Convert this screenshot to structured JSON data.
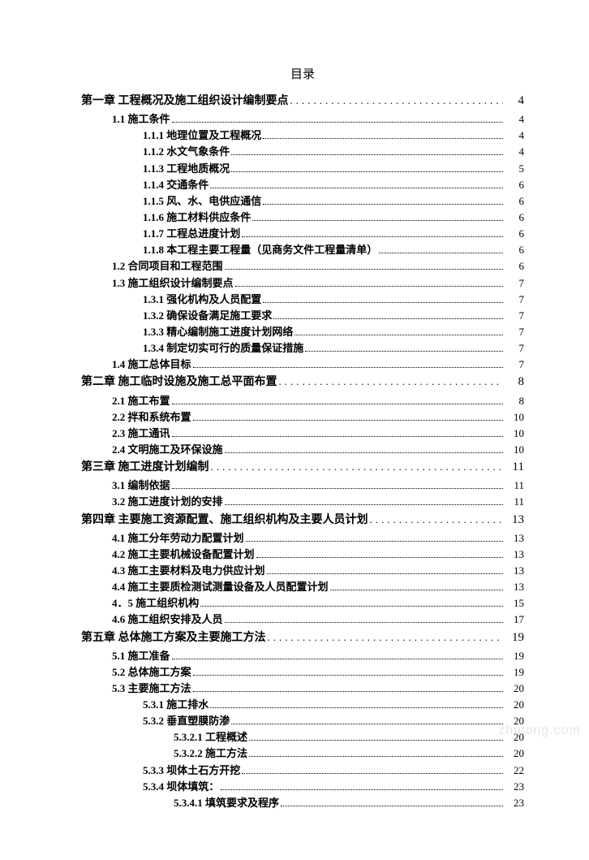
{
  "title": "目录",
  "watermark": "zhulong.com",
  "entries": [
    {
      "level": 0,
      "label": "第一章  工程概况及施工组织设计编制要点",
      "page": "4",
      "sparse": true,
      "chapter": true
    },
    {
      "level": 1,
      "label": "1.1 施工条件",
      "page": "4"
    },
    {
      "level": 2,
      "label": "1.1.1 地理位置及工程概况",
      "page": "4"
    },
    {
      "level": 2,
      "label": "1.1.2 水文气象条件",
      "page": "4"
    },
    {
      "level": 2,
      "label": "1.1.3 工程地质概况",
      "page": "5"
    },
    {
      "level": 2,
      "label": "1.1.4 交通条件",
      "page": "6"
    },
    {
      "level": 2,
      "label": "1.1.5 风、水、电供应通信",
      "page": "6"
    },
    {
      "level": 2,
      "label": "1.1.6 施工材料供应条件",
      "page": "6"
    },
    {
      "level": 2,
      "label": "1.1.7 工程总进度计划",
      "page": "6"
    },
    {
      "level": 2,
      "label": "1.1.8 本工程主要工程量（见商务文件工程量清单）",
      "page": "6"
    },
    {
      "level": 1,
      "label": "1.2 合同项目和工程范围",
      "page": "6"
    },
    {
      "level": 1,
      "label": "1.3 施工组织设计编制要点",
      "page": "7"
    },
    {
      "level": 2,
      "label": "1.3.1 强化机构及人员配置",
      "page": "7"
    },
    {
      "level": 2,
      "label": "1.3.2 确保设备满足施工要求",
      "page": "7"
    },
    {
      "level": 2,
      "label": "1.3.3 精心编制施工进度计划网络",
      "page": "7"
    },
    {
      "level": 2,
      "label": "1.3.4 制定切实可行的质量保证措施",
      "page": "7"
    },
    {
      "level": 1,
      "label": "1.4 施工总体目标",
      "page": "7"
    },
    {
      "level": 0,
      "label": "第二章  施工临时设施及施工总平面布置",
      "page": "8",
      "sparse": true,
      "chapter": true
    },
    {
      "level": 1,
      "label": "2.1 施工布置",
      "page": "8"
    },
    {
      "level": 1,
      "label": "2.2 拌和系统布置",
      "page": "10"
    },
    {
      "level": 1,
      "label": "2.3 施工通讯",
      "page": "10"
    },
    {
      "level": 1,
      "label": "2.4 文明施工及环保设施",
      "page": "10"
    },
    {
      "level": 0,
      "label": "第三章    施工进度计划编制",
      "page": "11",
      "sparse": true,
      "chapter": true
    },
    {
      "level": 1,
      "label": "3.1 编制依据",
      "page": "11"
    },
    {
      "level": 1,
      "label": "3.2 施工进度计划的安排",
      "page": "11"
    },
    {
      "level": 0,
      "label": "第四章  主要施工资源配置、施工组织机构及主要人员计划",
      "page": "13",
      "sparse": true,
      "chapter": true
    },
    {
      "level": 1,
      "label": "4.1 施工分年劳动力配置计划",
      "page": "13"
    },
    {
      "level": 1,
      "label": "4.2 施工主要机械设备配置计划",
      "page": "13"
    },
    {
      "level": 1,
      "label": "4.3 施工主要材料及电力供应计划",
      "page": "13"
    },
    {
      "level": 1,
      "label": "4.4 施工主要质检测试测量设备及人员配置计划",
      "page": "13"
    },
    {
      "level": 1,
      "label": "4．5 施工组织机构",
      "page": "15"
    },
    {
      "level": 1,
      "label": "4.6 施工组织安排及人员",
      "page": "17"
    },
    {
      "level": 0,
      "label": "第五章  总体施工方案及主要施工方法",
      "page": "19",
      "sparse": true,
      "chapter": true
    },
    {
      "level": 1,
      "label": "5.1 施工准备",
      "page": "19"
    },
    {
      "level": 1,
      "label": "5.2 总体施工方案",
      "page": "19"
    },
    {
      "level": 1,
      "label": "5.3 主要施工方法",
      "page": "20"
    },
    {
      "level": 2,
      "label": "5.3.1 施工排水",
      "page": "20"
    },
    {
      "level": 2,
      "label": "5.3.2 垂直塑膜防渗",
      "page": "20"
    },
    {
      "level": 3,
      "label": "5.3.2.1 工程概述",
      "page": "20"
    },
    {
      "level": 3,
      "label": "5.3.2.2 施工方法",
      "page": "20"
    },
    {
      "level": 2,
      "label": "5.3.3 坝体土石方开挖",
      "page": "22"
    },
    {
      "level": 2,
      "label": "5.3.4 坝体填筑：",
      "page": "23"
    },
    {
      "level": 3,
      "label": "5.3.4.1 填筑要求及程序",
      "page": "23"
    }
  ]
}
